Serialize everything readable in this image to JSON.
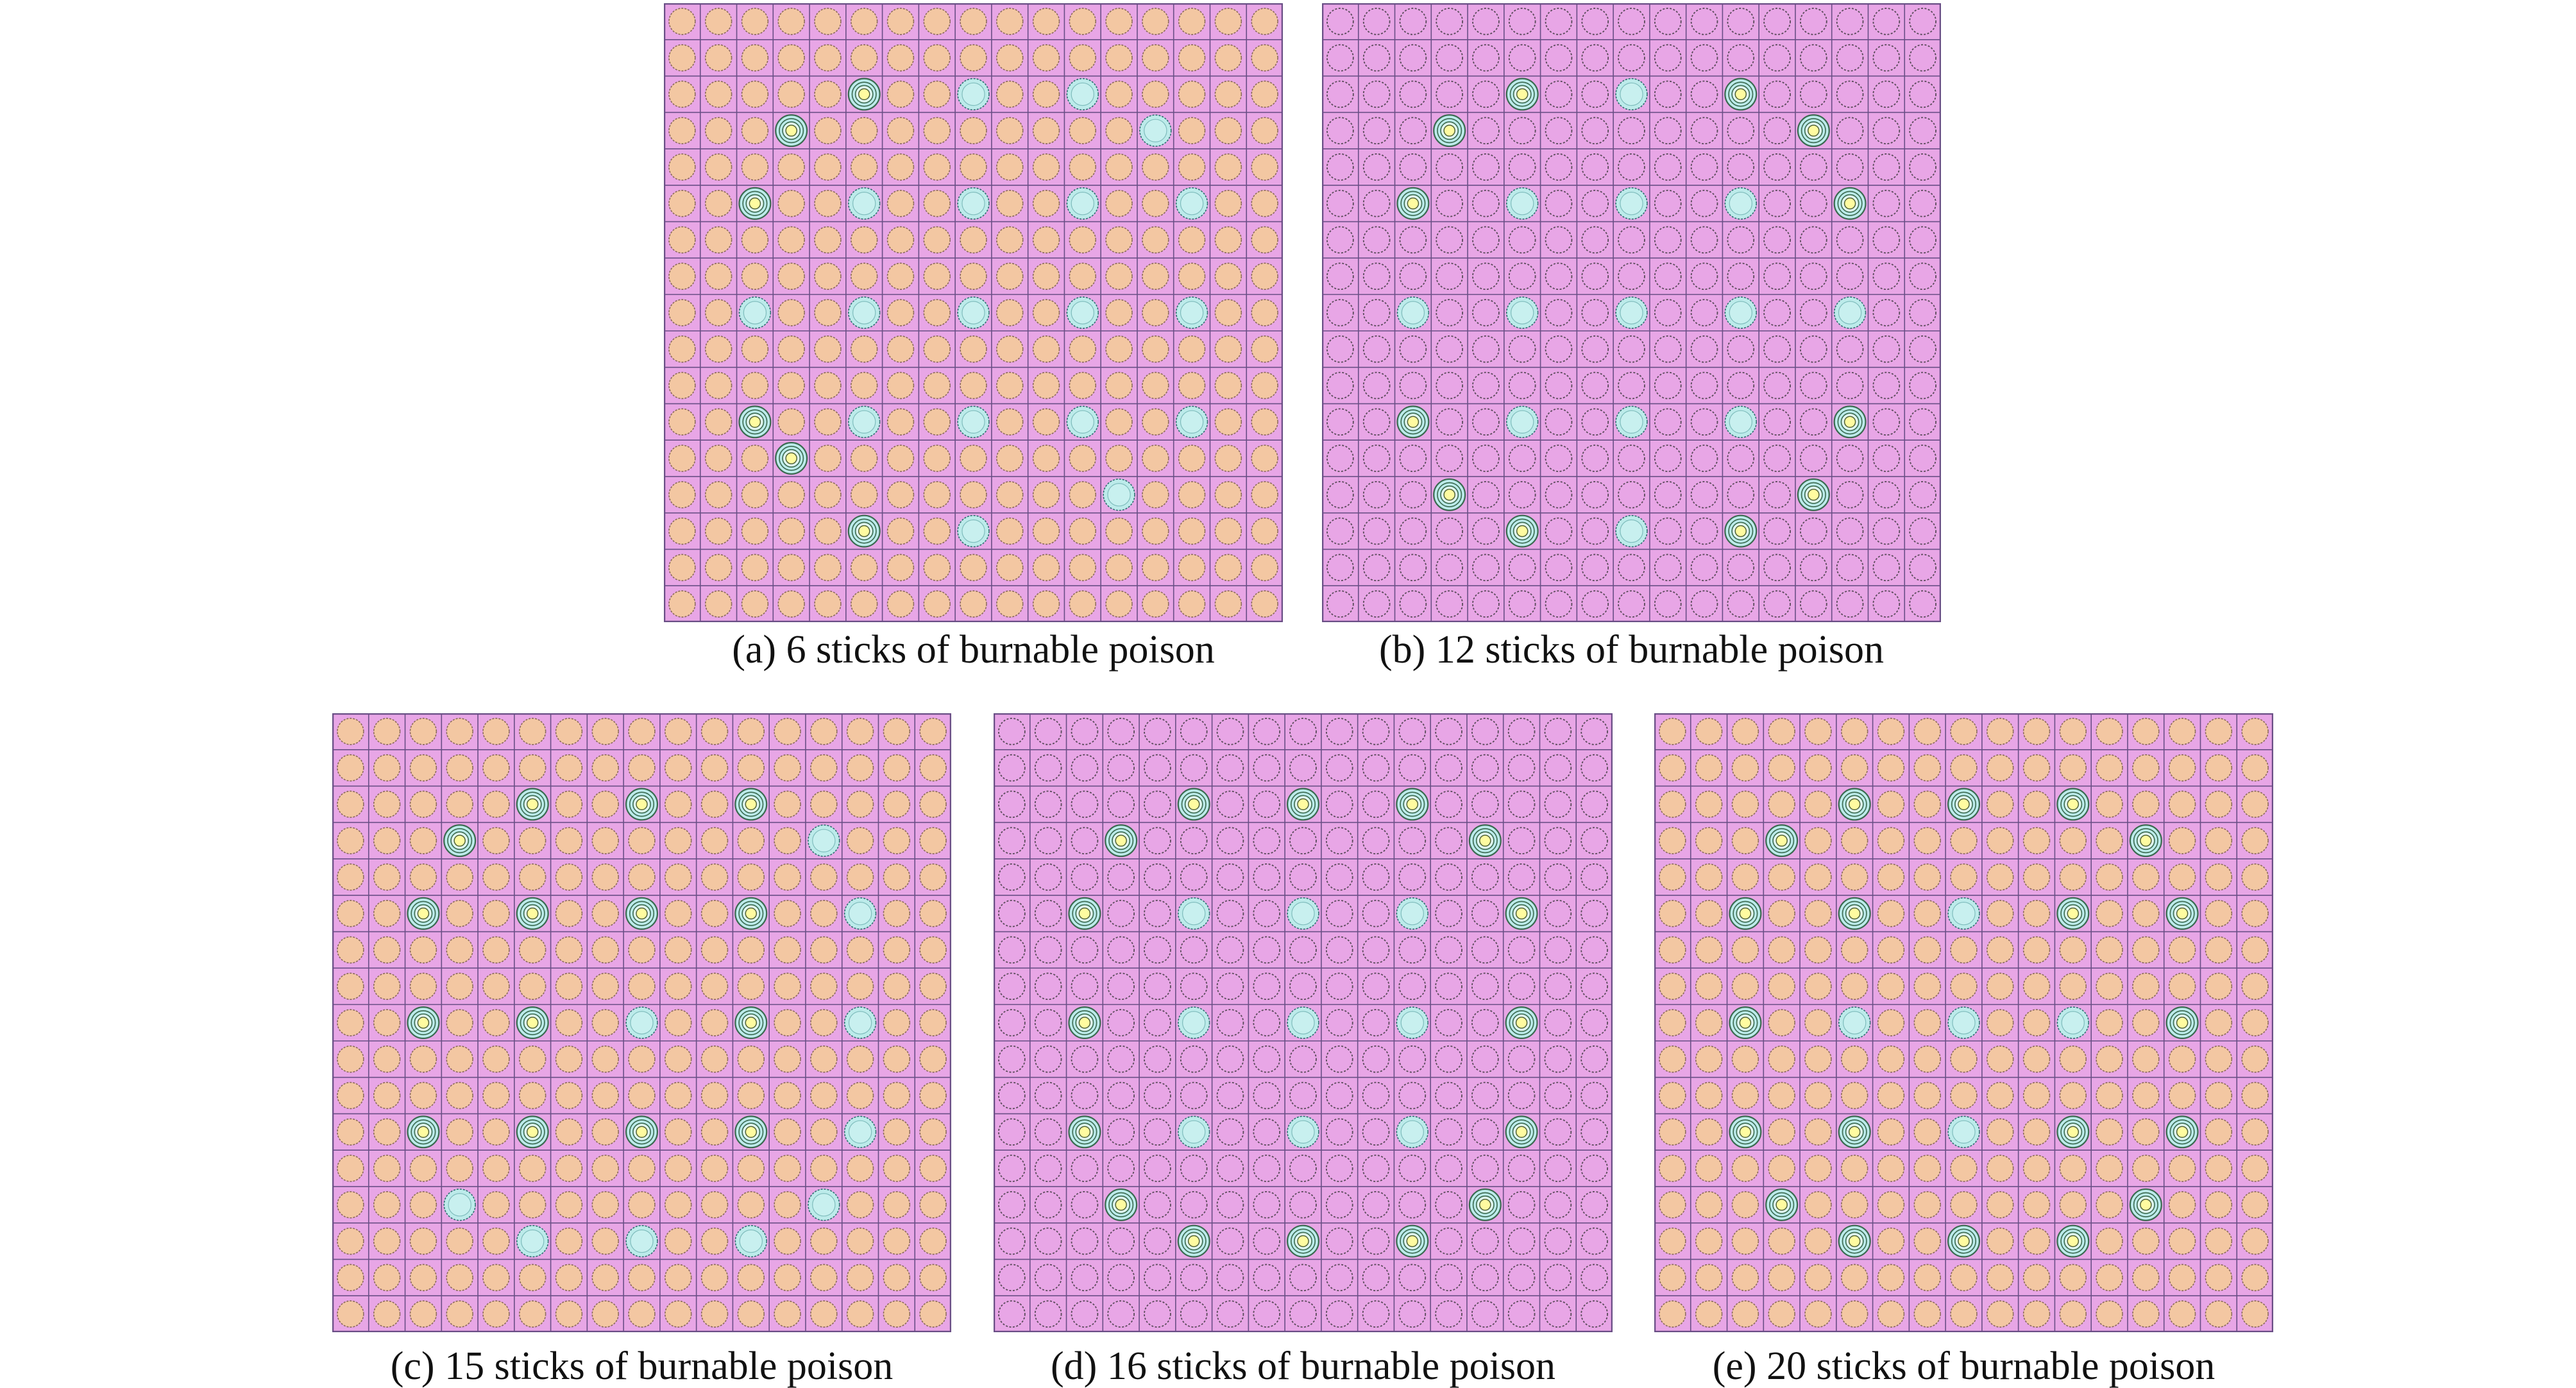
{
  "colors": {
    "moderator": "#e8a6e6",
    "grid_line": "#6a4f86",
    "fuel_orange": "#f3c7a2",
    "fuel_outline": "#8a6a5a",
    "empty_ring": "#5a4a5a",
    "tube_cyan": "#bcebea",
    "tube_outline": "#2f6f70",
    "poison_core": "#fffba0",
    "poison_ring": "#3a6a50"
  },
  "panels": [
    {
      "id": "a",
      "caption": "(a) 6 sticks of burnable poison",
      "fuel": "orange",
      "poison_positions": [
        [
          2,
          5
        ],
        [
          3,
          3
        ],
        [
          5,
          2
        ],
        [
          11,
          2
        ],
        [
          12,
          3
        ],
        [
          14,
          5
        ]
      ],
      "tube_positions": [
        [
          2,
          8
        ],
        [
          2,
          11
        ],
        [
          3,
          13
        ],
        [
          5,
          5
        ],
        [
          5,
          8
        ],
        [
          5,
          11
        ],
        [
          5,
          14
        ],
        [
          8,
          2
        ],
        [
          8,
          5
        ],
        [
          8,
          8
        ],
        [
          8,
          11
        ],
        [
          8,
          14
        ],
        [
          11,
          5
        ],
        [
          11,
          8
        ],
        [
          11,
          11
        ],
        [
          11,
          14
        ],
        [
          13,
          12
        ],
        [
          14,
          8
        ]
      ]
    },
    {
      "id": "b",
      "caption": "(b) 12 sticks of burnable poison",
      "fuel": "empty",
      "poison_positions": [
        [
          2,
          5
        ],
        [
          2,
          11
        ],
        [
          3,
          3
        ],
        [
          3,
          13
        ],
        [
          5,
          2
        ],
        [
          5,
          14
        ],
        [
          11,
          2
        ],
        [
          11,
          14
        ],
        [
          13,
          3
        ],
        [
          13,
          13
        ],
        [
          14,
          5
        ],
        [
          14,
          11
        ]
      ],
      "tube_positions": [
        [
          2,
          8
        ],
        [
          5,
          5
        ],
        [
          5,
          8
        ],
        [
          5,
          11
        ],
        [
          8,
          2
        ],
        [
          8,
          5
        ],
        [
          8,
          8
        ],
        [
          8,
          11
        ],
        [
          8,
          14
        ],
        [
          11,
          5
        ],
        [
          11,
          8
        ],
        [
          11,
          11
        ],
        [
          14,
          8
        ]
      ]
    },
    {
      "id": "c",
      "caption": "(c) 15 sticks of burnable poison",
      "fuel": "orange",
      "poison_positions": [
        [
          2,
          5
        ],
        [
          2,
          8
        ],
        [
          2,
          11
        ],
        [
          3,
          3
        ],
        [
          5,
          2
        ],
        [
          5,
          5
        ],
        [
          5,
          8
        ],
        [
          5,
          11
        ],
        [
          8,
          2
        ],
        [
          8,
          5
        ],
        [
          8,
          11
        ],
        [
          11,
          2
        ],
        [
          11,
          5
        ],
        [
          11,
          8
        ],
        [
          11,
          11
        ]
      ],
      "tube_positions": [
        [
          3,
          13
        ],
        [
          5,
          14
        ],
        [
          8,
          8
        ],
        [
          8,
          14
        ],
        [
          11,
          14
        ],
        [
          13,
          3
        ],
        [
          13,
          13
        ],
        [
          14,
          5
        ],
        [
          14,
          8
        ],
        [
          14,
          11
        ]
      ]
    },
    {
      "id": "d",
      "caption": "(d) 16 sticks of burnable poison",
      "fuel": "empty",
      "poison_positions": [
        [
          2,
          5
        ],
        [
          2,
          8
        ],
        [
          2,
          11
        ],
        [
          3,
          3
        ],
        [
          3,
          13
        ],
        [
          5,
          2
        ],
        [
          5,
          14
        ],
        [
          8,
          2
        ],
        [
          8,
          14
        ],
        [
          11,
          2
        ],
        [
          11,
          14
        ],
        [
          13,
          3
        ],
        [
          13,
          13
        ],
        [
          14,
          5
        ],
        [
          14,
          8
        ],
        [
          14,
          11
        ]
      ],
      "tube_positions": [
        [
          5,
          5
        ],
        [
          5,
          8
        ],
        [
          5,
          11
        ],
        [
          8,
          5
        ],
        [
          8,
          8
        ],
        [
          8,
          11
        ],
        [
          11,
          5
        ],
        [
          11,
          8
        ],
        [
          11,
          11
        ]
      ]
    },
    {
      "id": "e",
      "caption": "(e) 20 sticks of burnable poison",
      "fuel": "orange",
      "poison_positions": [
        [
          2,
          5
        ],
        [
          2,
          8
        ],
        [
          2,
          11
        ],
        [
          3,
          3
        ],
        [
          3,
          13
        ],
        [
          5,
          2
        ],
        [
          5,
          5
        ],
        [
          5,
          11
        ],
        [
          5,
          14
        ],
        [
          8,
          2
        ],
        [
          8,
          14
        ],
        [
          11,
          2
        ],
        [
          11,
          5
        ],
        [
          11,
          11
        ],
        [
          11,
          14
        ],
        [
          13,
          3
        ],
        [
          13,
          13
        ],
        [
          14,
          5
        ],
        [
          14,
          8
        ],
        [
          14,
          11
        ]
      ],
      "tube_positions": [
        [
          5,
          8
        ],
        [
          8,
          5
        ],
        [
          8,
          8
        ],
        [
          8,
          11
        ],
        [
          11,
          8
        ]
      ]
    }
  ]
}
